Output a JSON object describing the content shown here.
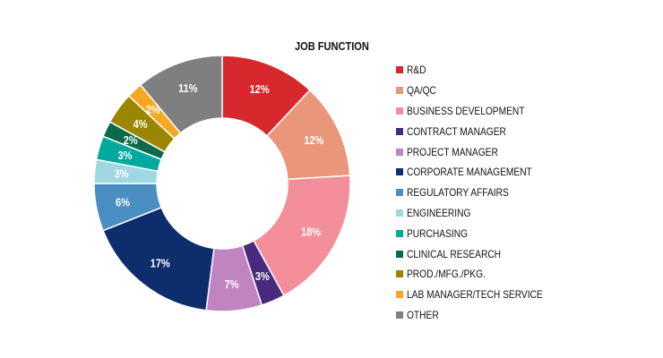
{
  "chart_data": {
    "type": "pie",
    "title": "JOB FUNCTION",
    "donut": true,
    "legend_position": "right",
    "slices": [
      {
        "label": "R&D",
        "value": 12,
        "display": "12%",
        "color": "#d7282e"
      },
      {
        "label": "QA/QC",
        "value": 12,
        "display": "12%",
        "color": "#e9967a"
      },
      {
        "label": "BUSINESS DEVELOPMENT",
        "value": 18,
        "display": "18%",
        "color": "#f28f9b"
      },
      {
        "label": "CONTRACT MANAGER",
        "value": 3,
        "display": "3%",
        "color": "#4a2a7e"
      },
      {
        "label": "PROJECT MANAGER",
        "value": 7,
        "display": "7%",
        "color": "#c084c0"
      },
      {
        "label": "CORPORATE MANAGEMENT",
        "value": 17,
        "display": "17%",
        "color": "#0e2d6d"
      },
      {
        "label": "REGULATORY AFFAIRS",
        "value": 6,
        "display": "6%",
        "color": "#4b8ec1"
      },
      {
        "label": "ENGINEERING",
        "value": 3,
        "display": "3%",
        "color": "#9fd8e1"
      },
      {
        "label": "PURCHASING",
        "value": 3,
        "display": "3%",
        "color": "#00a99d"
      },
      {
        "label": "CLINICAL RESEARCH",
        "value": 2,
        "display": "2%",
        "color": "#0b6a4a"
      },
      {
        "label": "PROD./MFG./PKG.",
        "value": 4,
        "display": "4%",
        "color": "#9a8600"
      },
      {
        "label": "LAB MANAGER/TECH SERVICE",
        "value": 2,
        "display": "2%",
        "color": "#f7a823"
      },
      {
        "label": "OTHER",
        "value": 11,
        "display": "11%",
        "color": "#7f7f7f"
      }
    ]
  }
}
